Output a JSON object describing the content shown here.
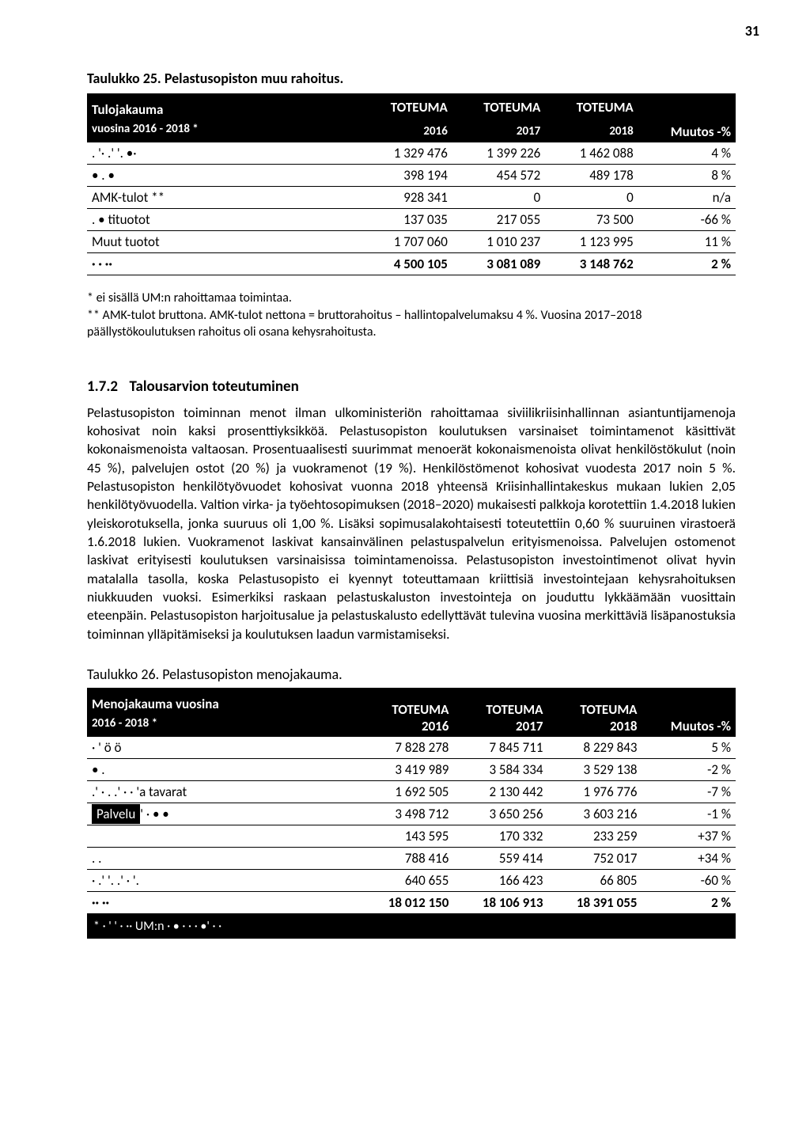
{
  "page_number": "31",
  "table25": {
    "caption": "Taulukko 25. Pelastusopiston muu rahoitus.",
    "header_left_line1": "Tulojakauma",
    "header_left_line2": "vuosina 2016 - 2018 *",
    "col_headers": {
      "c1a": "TOTEUMA",
      "c1b": "2016",
      "c2a": "TOTEUMA",
      "c2b": "2017",
      "c3a": "TOTEUMA",
      "c3b": "2018",
      "c4": "Muutos -%"
    },
    "rows": [
      {
        "label": ". '· .' '. •·",
        "v16": "1 329 476",
        "v17": "1 399 226",
        "v18": "1 462 088",
        "chg": "4 %"
      },
      {
        "label": "• . •",
        "v16": "398 194",
        "v17": "454 572",
        "v18": "489 178",
        "chg": "8 %"
      },
      {
        "label": "AMK-tulot **",
        "v16": "928 341",
        "v17": "0",
        "v18": "0",
        "chg": "n/a"
      },
      {
        "label": ". •       tituotot",
        "v16": "137 035",
        "v17": "217 055",
        "v18": "73 500",
        "chg": "-66 %"
      },
      {
        "label": "Muut tuotot",
        "v16": "1 707 060",
        "v17": "1 010 237",
        "v18": "1 123 995",
        "chg": "11 %"
      },
      {
        "label": "· · ··",
        "v16": "4 500 105",
        "v17": "3 081 089",
        "v18": "3 148 762",
        "chg": "2 %"
      }
    ]
  },
  "notes25": {
    "line1": "* ei sisällä UM:n rahoittamaa toimintaa.",
    "line2": "** AMK-tulot bruttona. AMK-tulot nettona = bruttorahoitus – hallintopalvelumaksu 4 %. Vuosina 2017–2018 päällystökoulutuksen rahoitus oli osana kehysrahoitusta."
  },
  "section": {
    "num": "1.7.2",
    "title": "Talousarvion toteutuminen",
    "body": "Pelastusopiston toiminnan menot ilman ulkoministeriön rahoittamaa siviilikriisinhallinnan asiantuntijamenoja kohosivat noin kaksi prosenttiyksikköä. Pelastusopiston koulutuksen varsinaiset toimintamenot käsittivät kokonaismenoista valtaosan. Prosentuaalisesti suurimmat menoerät kokonaismenoista olivat henkilöstökulut (noin 45 %), palvelujen ostot (20 %) ja vuokramenot (19 %). Henkilöstömenot kohosivat vuodesta 2017 noin 5 %. Pelastusopiston henkilötyövuodet kohosivat vuonna 2018 yhteensä Kriisinhallintakeskus mukaan lukien 2,05 henkilötyövuodella. Valtion virka- ja työehtosopimuksen (2018–2020) mukaisesti palkkoja korotettiin 1.4.2018 lukien yleiskorotuksella, jonka suuruus oli 1,00 %. Lisäksi sopimusalakohtaisesti toteutettiin 0,60 % suuruinen virastoerä 1.6.2018 lukien. Vuokramenot laskivat kansainvälinen pelastuspalvelun erityismenoissa. Palvelujen ostomenot laskivat erityisesti koulutuksen varsinaisissa toimintamenoissa. Pelastusopiston investointimenot olivat hyvin matalalla tasolla, koska Pelastusopisto ei kyennyt toteuttamaan kriittisiä investointejaan kehysrahoituksen niukkuuden vuoksi. Esimerkiksi raskaan pelastuskaluston investointeja on jouduttu lykkäämään vuosittain eteenpäin. Pelastusopiston harjoitusalue ja pelastuskalusto edellyttävät tulevina vuosina merkittäviä lisäpanostuksia toiminnan ylläpitämiseksi ja koulutuksen laadun varmistamiseksi."
  },
  "table26": {
    "caption": "Taulukko 26. Pelastusopiston menojakauma.",
    "header_left_line1": "Menojakauma vuosina",
    "header_left_line2": "2016 - 2018 *",
    "col_headers": {
      "c1a": "TOTEUMA",
      "c1b": "2016",
      "c2a": "TOTEUMA",
      "c2b": "2017",
      "c3a": "TOTEUMA",
      "c3b": "2018",
      "c4": "Muutos -%"
    },
    "rows": [
      {
        "label": "· ' ö ö",
        "v16": "7 828 278",
        "v17": "7 845 711",
        "v18": "8 229 843",
        "chg": "5 %"
      },
      {
        "label": "• .",
        "v16": "3 419 989",
        "v17": "3 584 334",
        "v18": "3 529 138",
        "chg": "-2 %"
      },
      {
        "label": ".' · . .' · · 'a tavarat",
        "v16": "1 692 505",
        "v17": "2 130 442",
        "v18": "1 976 776",
        "chg": "-7 %"
      },
      {
        "label": "Palvelu' ·   • •",
        "v16": "3 498 712",
        "v17": "3 650 256",
        "v18": "3 603 216",
        "chg": "-1 %",
        "label_boxed": true
      },
      {
        "label": "",
        "v16": "143 595",
        "v17": "170 332",
        "v18": "233 259",
        "chg": "+37 %"
      },
      {
        "label": ". .",
        "v16": "788 416",
        "v17": "559 414",
        "v18": "752 017",
        "chg": "+34 %"
      },
      {
        "label": "· .' '. .' · '.",
        "v16": "640 655",
        "v17": "166 423",
        "v18": "66 805",
        "chg": "-60 %"
      },
      {
        "label": "·· ··",
        "v16": "18 012 150",
        "v17": "18 106 913",
        "v18": "18 391 055",
        "chg": "2 %"
      }
    ],
    "footnote": "* · ' ' · ·· UM:n · • · · · •' · ·"
  }
}
